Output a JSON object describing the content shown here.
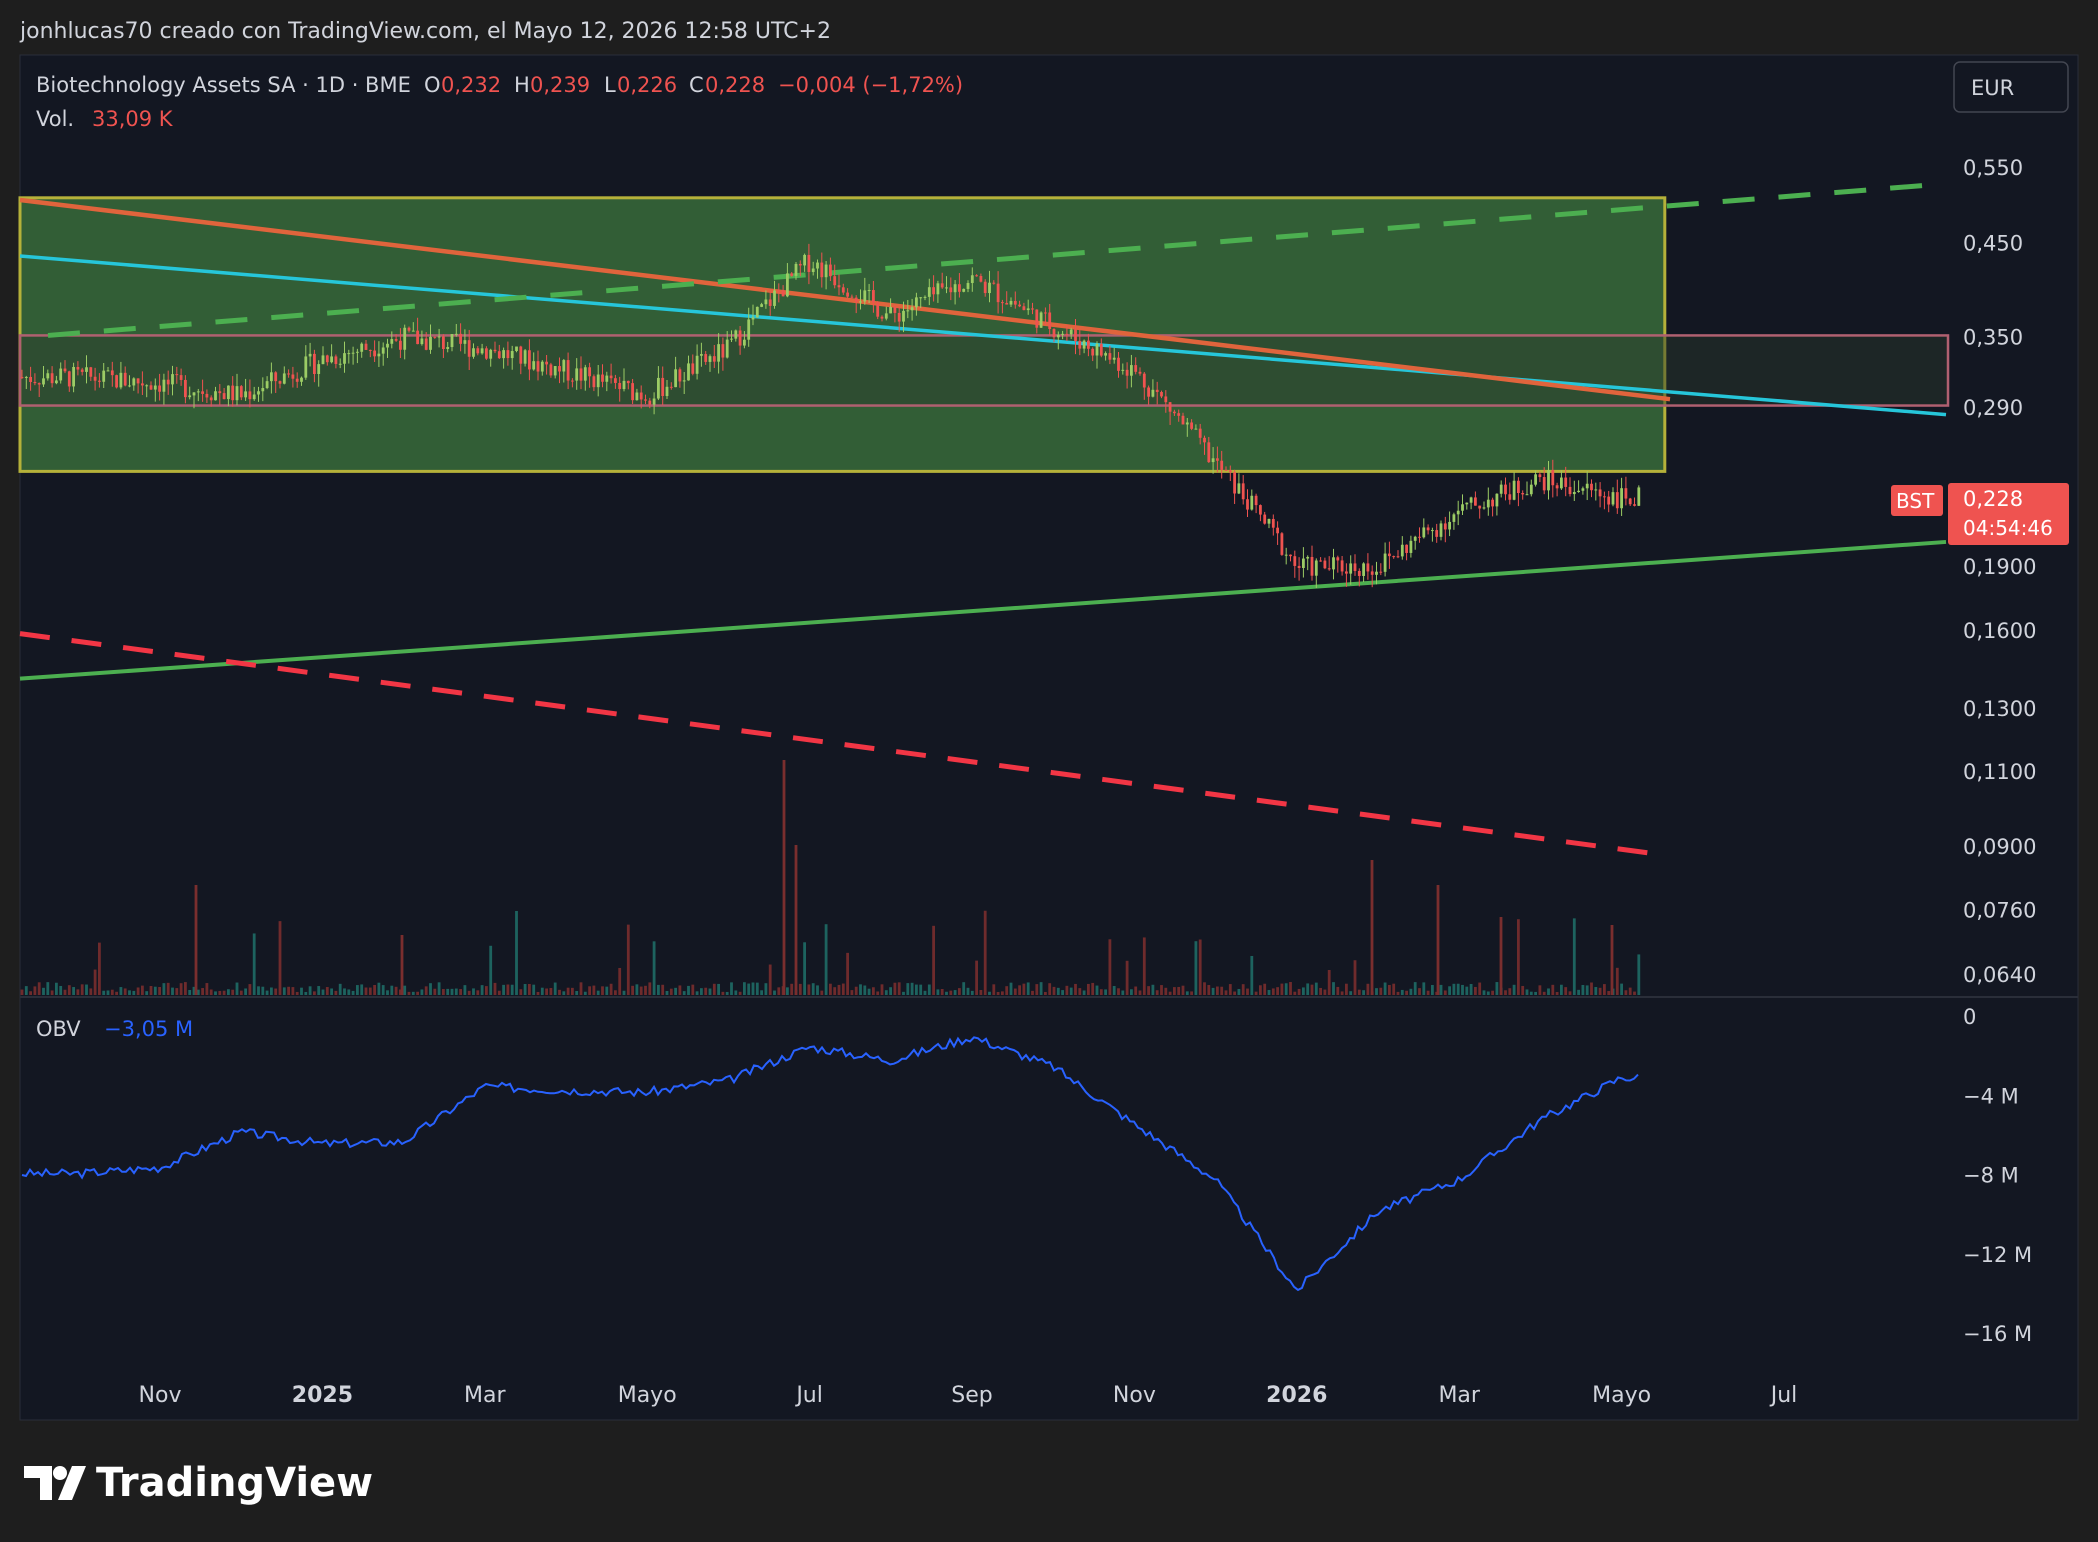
{
  "header": {
    "attribution": "jonhlucas70 creado con TradingView.com, el Mayo 12, 2026 12:58 UTC+2"
  },
  "legend": {
    "symbol": "Biotechnology Assets SA · 1D · BME",
    "o_label": "O",
    "o_value": "0,232",
    "h_label": "H",
    "h_value": "0,239",
    "l_label": "L",
    "l_value": "0,226",
    "c_label": "C",
    "c_value": "0,228",
    "change": "−0,004 (−1,72%)",
    "vol_label": "Vol.",
    "vol_value": "33,09 K"
  },
  "currency_button": "EUR",
  "last_price": {
    "ticker": "BST",
    "price": "0,228",
    "countdown": "04:54:46"
  },
  "price_axis": {
    "labels": [
      "0,550",
      "0,450",
      "0,350",
      "0,290",
      "0,1900",
      "0,1600",
      "0,1300",
      "0,1100",
      "0,0900",
      "0,0760",
      "0,0640"
    ],
    "values": [
      0.55,
      0.45,
      0.35,
      0.29,
      0.19,
      0.16,
      0.13,
      0.11,
      0.09,
      0.076,
      0.064
    ],
    "scale": "log"
  },
  "obv_legend": {
    "label": "OBV",
    "value": "−3,05 M"
  },
  "obv_axis": {
    "labels": [
      "0",
      "−4 M",
      "−8 M",
      "−12 M",
      "−16 M"
    ],
    "values": [
      0,
      -4,
      -8,
      -12,
      -16
    ]
  },
  "time_axis": {
    "labels": [
      "Nov",
      "2025",
      "Mar",
      "Mayo",
      "Jul",
      "Sep",
      "Nov",
      "2026",
      "Mar",
      "Mayo",
      "Jul"
    ],
    "bold": [
      false,
      true,
      false,
      false,
      false,
      false,
      false,
      true,
      false,
      false,
      false
    ]
  },
  "logo_text": "TradingView",
  "colors": {
    "background": "#131722",
    "frame": "#1e1e1e",
    "up": "#26a69a",
    "down": "#ef5350",
    "candle_up": "#9ccc65",
    "candle_down": "#ef5350",
    "obv": "#2962ff",
    "teal_line": "#26c6da",
    "orange_line": "#e0643c",
    "green_line": "#4caf50",
    "red_dash": "#f23645",
    "box_fill": "#3f7a3f",
    "box_border": "#b5b13a",
    "zone_border": "#b06070"
  },
  "chart_data": {
    "type": "candlestick",
    "series": [
      {
        "name": "Biotechnology Assets SA",
        "x": [
          "2024-10",
          "2024-11",
          "2024-12",
          "2025-01",
          "2025-02",
          "2025-03",
          "2025-04",
          "2025-05",
          "2025-06",
          "2025-07",
          "2025-08",
          "2025-09",
          "2025-10",
          "2025-11",
          "2025-12",
          "2026-01",
          "2026-02",
          "2026-03",
          "2026-04",
          "2026-05"
        ],
        "close": [
          0.315,
          0.31,
          0.3,
          0.33,
          0.35,
          0.34,
          0.32,
          0.3,
          0.34,
          0.43,
          0.37,
          0.41,
          0.36,
          0.32,
          0.25,
          0.19,
          0.19,
          0.22,
          0.24,
          0.228
        ]
      },
      {
        "name": "OBV",
        "x": [
          "2024-10",
          "2024-11",
          "2024-12",
          "2025-01",
          "2025-02",
          "2025-03",
          "2025-04",
          "2025-05",
          "2025-06",
          "2025-07",
          "2025-08",
          "2025-09",
          "2025-10",
          "2025-11",
          "2025-12",
          "2026-01",
          "2026-02",
          "2026-03",
          "2026-04",
          "2026-05"
        ],
        "values": [
          -7.9,
          -7.6,
          -5.8,
          -6.4,
          -6.3,
          -3.5,
          -3.7,
          -3.8,
          -3.2,
          -1.5,
          -2.2,
          -1.0,
          -2.5,
          -5.4,
          -8.2,
          -13.8,
          -9.8,
          -8.2,
          -5.2,
          -3.05
        ]
      }
    ],
    "ylim": [
      0.06,
      0.6
    ],
    "obv_ylim": [
      -18,
      0.5
    ],
    "price_scale": "log",
    "grid": false,
    "drawings": {
      "rectangle": {
        "from": "2024-09",
        "to": "2026-06",
        "top": 0.508,
        "bottom": 0.245
      },
      "zone": {
        "top": 0.352,
        "bottom": 0.292
      },
      "teal_trend": [
        {
          "x": "2024-09",
          "y": 0.435
        },
        {
          "x": "2026-07",
          "y": 0.285
        }
      ],
      "orange_trend": [
        {
          "x": "2024-09",
          "y": 0.505
        },
        {
          "x": "2026-06",
          "y": 0.297
        }
      ],
      "green_dashed": [
        {
          "x": "2024-10",
          "y": 0.352
        },
        {
          "x": "2026-07",
          "y": 0.525
        }
      ],
      "green_support": [
        {
          "x": "2024-09",
          "y": 0.141
        },
        {
          "x": "2026-07",
          "y": 0.203
        }
      ],
      "red_dashed": [
        {
          "x": "2024-09",
          "y": 0.159
        },
        {
          "x": "2026-06",
          "y": 0.088
        }
      ]
    }
  }
}
